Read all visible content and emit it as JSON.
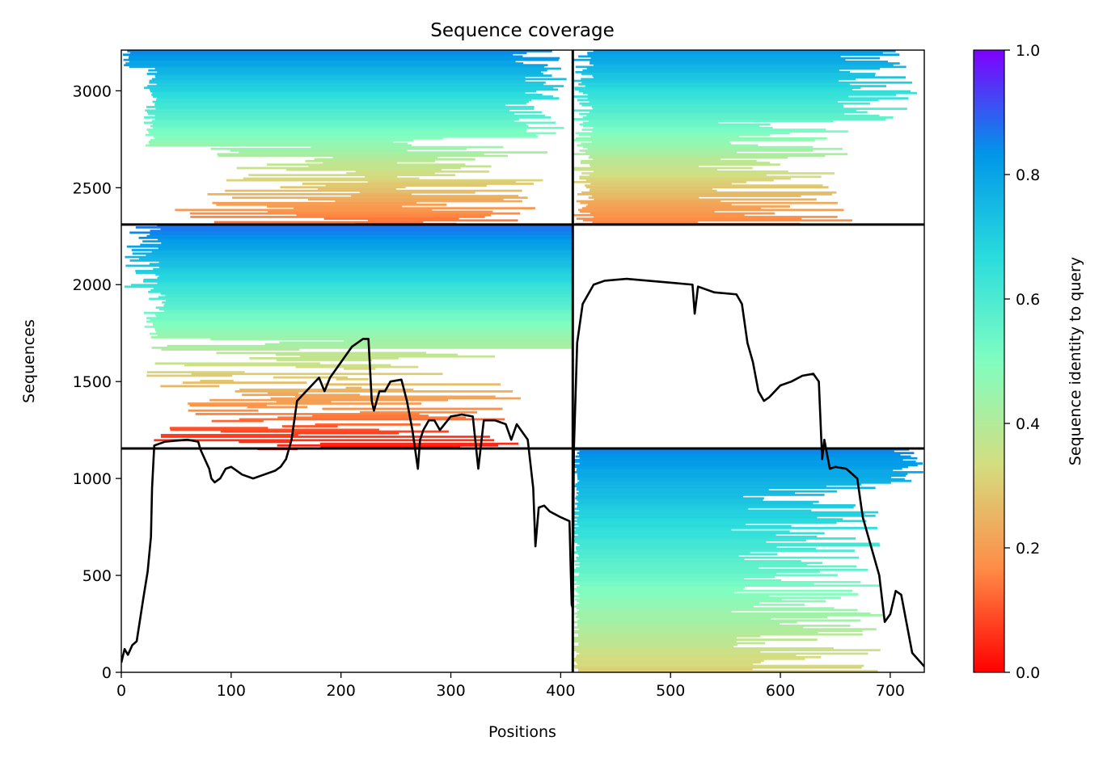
{
  "chart_data": {
    "type": "heatmap",
    "title": "Sequence coverage",
    "xlabel": "Positions",
    "ylabel": "Sequences",
    "xlim": [
      0,
      731
    ],
    "ylim": [
      0,
      3210
    ],
    "x_ticks": [
      0,
      100,
      200,
      300,
      400,
      500,
      600,
      700
    ],
    "y_ticks": [
      0,
      500,
      1000,
      1500,
      2000,
      2500,
      3000
    ],
    "colorbar": {
      "label": "Sequence identity to query",
      "range": [
        0,
        1
      ],
      "ticks": [
        "0.0",
        "0.2",
        "0.4",
        "0.6",
        "0.8",
        "1.0"
      ],
      "colormap": "rainbow_r",
      "stops": [
        "#ff0000",
        "#ff8c46",
        "#d4dd80",
        "#80fec1",
        "#2adcdd",
        "#0096e9",
        "#7f00ff"
      ]
    },
    "block_dividers": {
      "vertical_at_position": 411,
      "horizontal_at_sequences": [
        1155,
        2310
      ]
    },
    "blocks": [
      {
        "x_range": [
          0,
          411
        ],
        "y_range": [
          2310,
          3210
        ],
        "identity_top": 0.85,
        "identity_bottom": 0.12
      },
      {
        "x_range": [
          411,
          731
        ],
        "y_range": [
          2310,
          3210
        ],
        "identity_top": 0.82,
        "identity_bottom": 0.14
      },
      {
        "x_range": [
          0,
          411
        ],
        "y_range": [
          1155,
          2310
        ],
        "identity_top": 0.88,
        "identity_bottom": 0.02
      },
      {
        "x_range": [
          411,
          731
        ],
        "y_range": [
          0,
          1155
        ],
        "identity_top": 0.85,
        "identity_bottom": 0.3
      }
    ],
    "coverage_line": {
      "color": "#000000",
      "x": [
        0,
        3,
        6,
        10,
        14,
        20,
        24,
        27,
        28,
        30,
        35,
        40,
        50,
        60,
        70,
        72,
        80,
        82,
        85,
        90,
        95,
        100,
        110,
        120,
        130,
        140,
        145,
        150,
        155,
        160,
        170,
        180,
        185,
        190,
        200,
        210,
        220,
        225,
        228,
        230,
        235,
        240,
        245,
        255,
        260,
        265,
        270,
        272,
        275,
        280,
        285,
        290,
        300,
        310,
        320,
        325,
        330,
        340,
        350,
        355,
        360,
        370,
        375,
        377,
        380,
        385,
        390,
        400,
        408,
        410,
        411,
        412,
        415,
        420,
        430,
        440,
        460,
        480,
        500,
        520,
        522,
        525,
        530,
        540,
        560,
        565,
        570,
        575,
        580,
        585,
        590,
        595,
        600,
        610,
        620,
        630,
        635,
        638,
        640,
        645,
        650,
        660,
        670,
        675,
        680,
        690,
        695,
        700,
        705,
        710,
        720,
        731
      ],
      "y": [
        50,
        120,
        90,
        140,
        160,
        380,
        520,
        700,
        950,
        1170,
        1180,
        1190,
        1195,
        1200,
        1190,
        1150,
        1050,
        1000,
        980,
        1000,
        1050,
        1060,
        1020,
        1000,
        1020,
        1040,
        1060,
        1100,
        1200,
        1400,
        1460,
        1520,
        1450,
        1520,
        1600,
        1680,
        1720,
        1720,
        1400,
        1350,
        1450,
        1450,
        1500,
        1510,
        1400,
        1250,
        1050,
        1200,
        1250,
        1300,
        1300,
        1250,
        1320,
        1330,
        1320,
        1050,
        1300,
        1300,
        1280,
        1200,
        1280,
        1200,
        950,
        650,
        850,
        860,
        830,
        800,
        780,
        350,
        330,
        1150,
        1700,
        1900,
        2000,
        2020,
        2030,
        2020,
        2010,
        2000,
        1850,
        1990,
        1980,
        1960,
        1950,
        1900,
        1700,
        1600,
        1450,
        1400,
        1420,
        1450,
        1480,
        1500,
        1530,
        1540,
        1500,
        1100,
        1200,
        1050,
        1060,
        1050,
        1000,
        800,
        700,
        500,
        260,
        300,
        420,
        400,
        100,
        30
      ]
    }
  }
}
